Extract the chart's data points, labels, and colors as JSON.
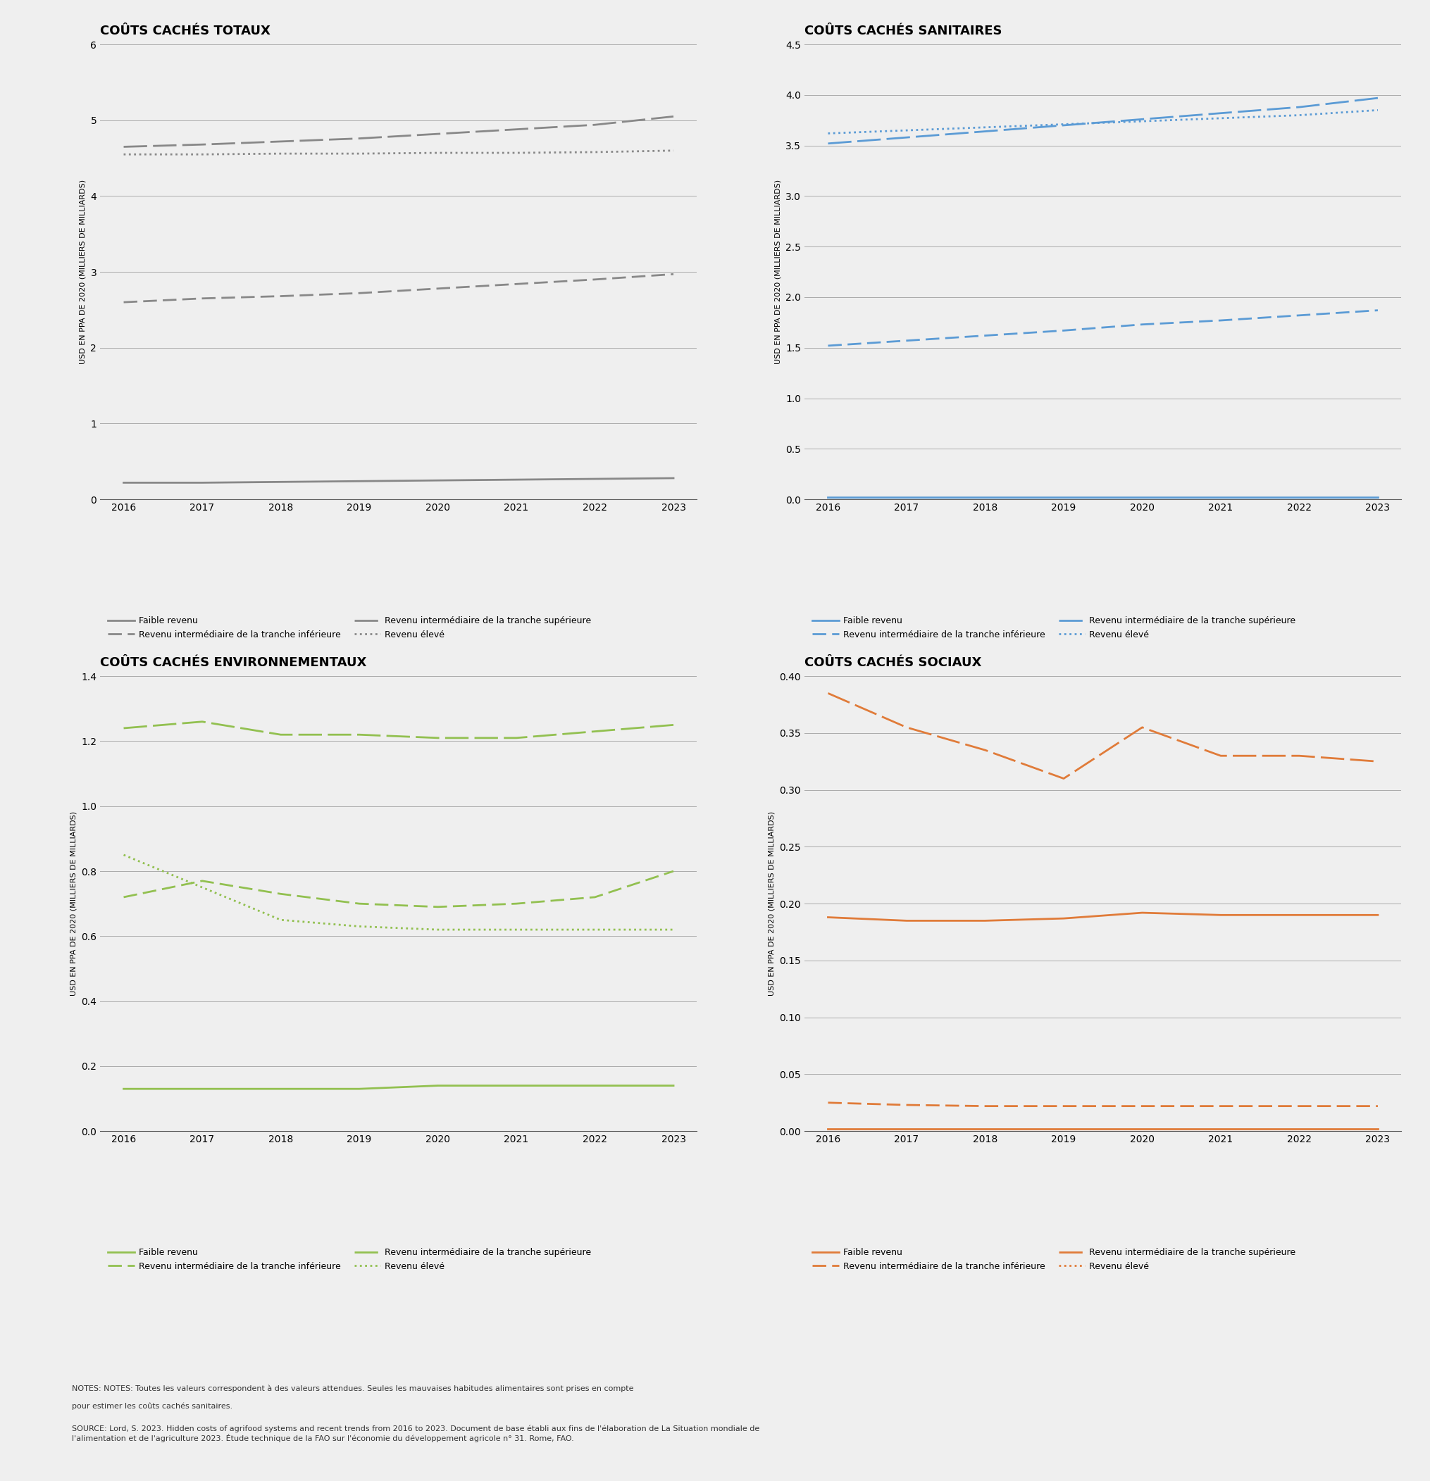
{
  "years": [
    2016,
    2017,
    2018,
    2019,
    2020,
    2021,
    2022,
    2023
  ],
  "title_total": "COÛTS CACHÉS TOTAUX",
  "title_health": "COÛTS CACHÉS SANITAIRES",
  "title_env": "COÛTS CACHÉS ENVIRONNEMENTAUX",
  "title_social": "COÛTS CACHÉS SOCIAUX",
  "ylabel": "USD EN PPA DE 2020 (MILLIERS DE MILLIARDS)",
  "legend_low": "Faible revenu",
  "legend_lower_mid": "Revenu intermédiaire de la tranche inférieure",
  "legend_upper_mid": "Revenu intermédiaire de la tranche supérieure",
  "legend_high": "Revenu élevé",
  "gray_color": "#888888",
  "blue_color": "#5B9BD5",
  "green_color": "#92C050",
  "orange_color": "#E07B39",
  "total_low": [
    0.22,
    0.22,
    0.23,
    0.24,
    0.25,
    0.26,
    0.27,
    0.28
  ],
  "total_lower_mid": [
    2.6,
    2.65,
    2.68,
    2.72,
    2.78,
    2.84,
    2.9,
    2.97
  ],
  "total_upper_mid": [
    4.65,
    4.68,
    4.72,
    4.76,
    4.82,
    4.88,
    4.94,
    5.05
  ],
  "total_high": [
    4.55,
    4.55,
    4.56,
    4.56,
    4.57,
    4.57,
    4.58,
    4.6
  ],
  "health_low": [
    0.02,
    0.02,
    0.02,
    0.02,
    0.02,
    0.02,
    0.02,
    0.02
  ],
  "health_lower_mid": [
    1.52,
    1.57,
    1.62,
    1.67,
    1.73,
    1.77,
    1.82,
    1.87
  ],
  "health_upper_mid": [
    3.52,
    3.58,
    3.64,
    3.7,
    3.76,
    3.82,
    3.88,
    3.97
  ],
  "health_high": [
    3.62,
    3.65,
    3.68,
    3.71,
    3.74,
    3.77,
    3.8,
    3.85
  ],
  "env_low": [
    0.13,
    0.13,
    0.13,
    0.13,
    0.14,
    0.14,
    0.14,
    0.14
  ],
  "env_lower_mid": [
    0.72,
    0.77,
    0.73,
    0.7,
    0.69,
    0.7,
    0.72,
    0.8
  ],
  "env_upper_mid": [
    1.24,
    1.26,
    1.22,
    1.22,
    1.21,
    1.21,
    1.23,
    1.25
  ],
  "env_high": [
    0.85,
    0.75,
    0.65,
    0.63,
    0.62,
    0.62,
    0.62,
    0.62
  ],
  "social_low": [
    0.002,
    0.002,
    0.002,
    0.002,
    0.002,
    0.002,
    0.002,
    0.002
  ],
  "social_lower_mid": [
    0.025,
    0.023,
    0.022,
    0.022,
    0.022,
    0.022,
    0.022,
    0.022
  ],
  "social_upper_mid": [
    0.188,
    0.185,
    0.185,
    0.187,
    0.192,
    0.19,
    0.19,
    0.19
  ],
  "social_high": [
    0.385,
    0.355,
    0.335,
    0.31,
    0.355,
    0.33,
    0.33,
    0.325
  ],
  "bg_color": "#EFEFEF",
  "notes_line1": "NOTES: Toutes les valeurs correspondent à des valeurs attendues. Seules les mauvaises habitudes alimentaires sont prises en compte",
  "notes_line2": "pour estimer les coûts cachés sanitaires.",
  "source_line": "SOURCE: Lord, S. 2023. Hidden costs of agrifood systems and recent trends from 2016 to 2023. Document de base établi aux fins de l'élaboration de La Situation mondiale de\nl'alimentation et de l'agriculture 2023. Étude technique de la FAO sur l'économie du développement agricole n° 31. Rome, FAO."
}
